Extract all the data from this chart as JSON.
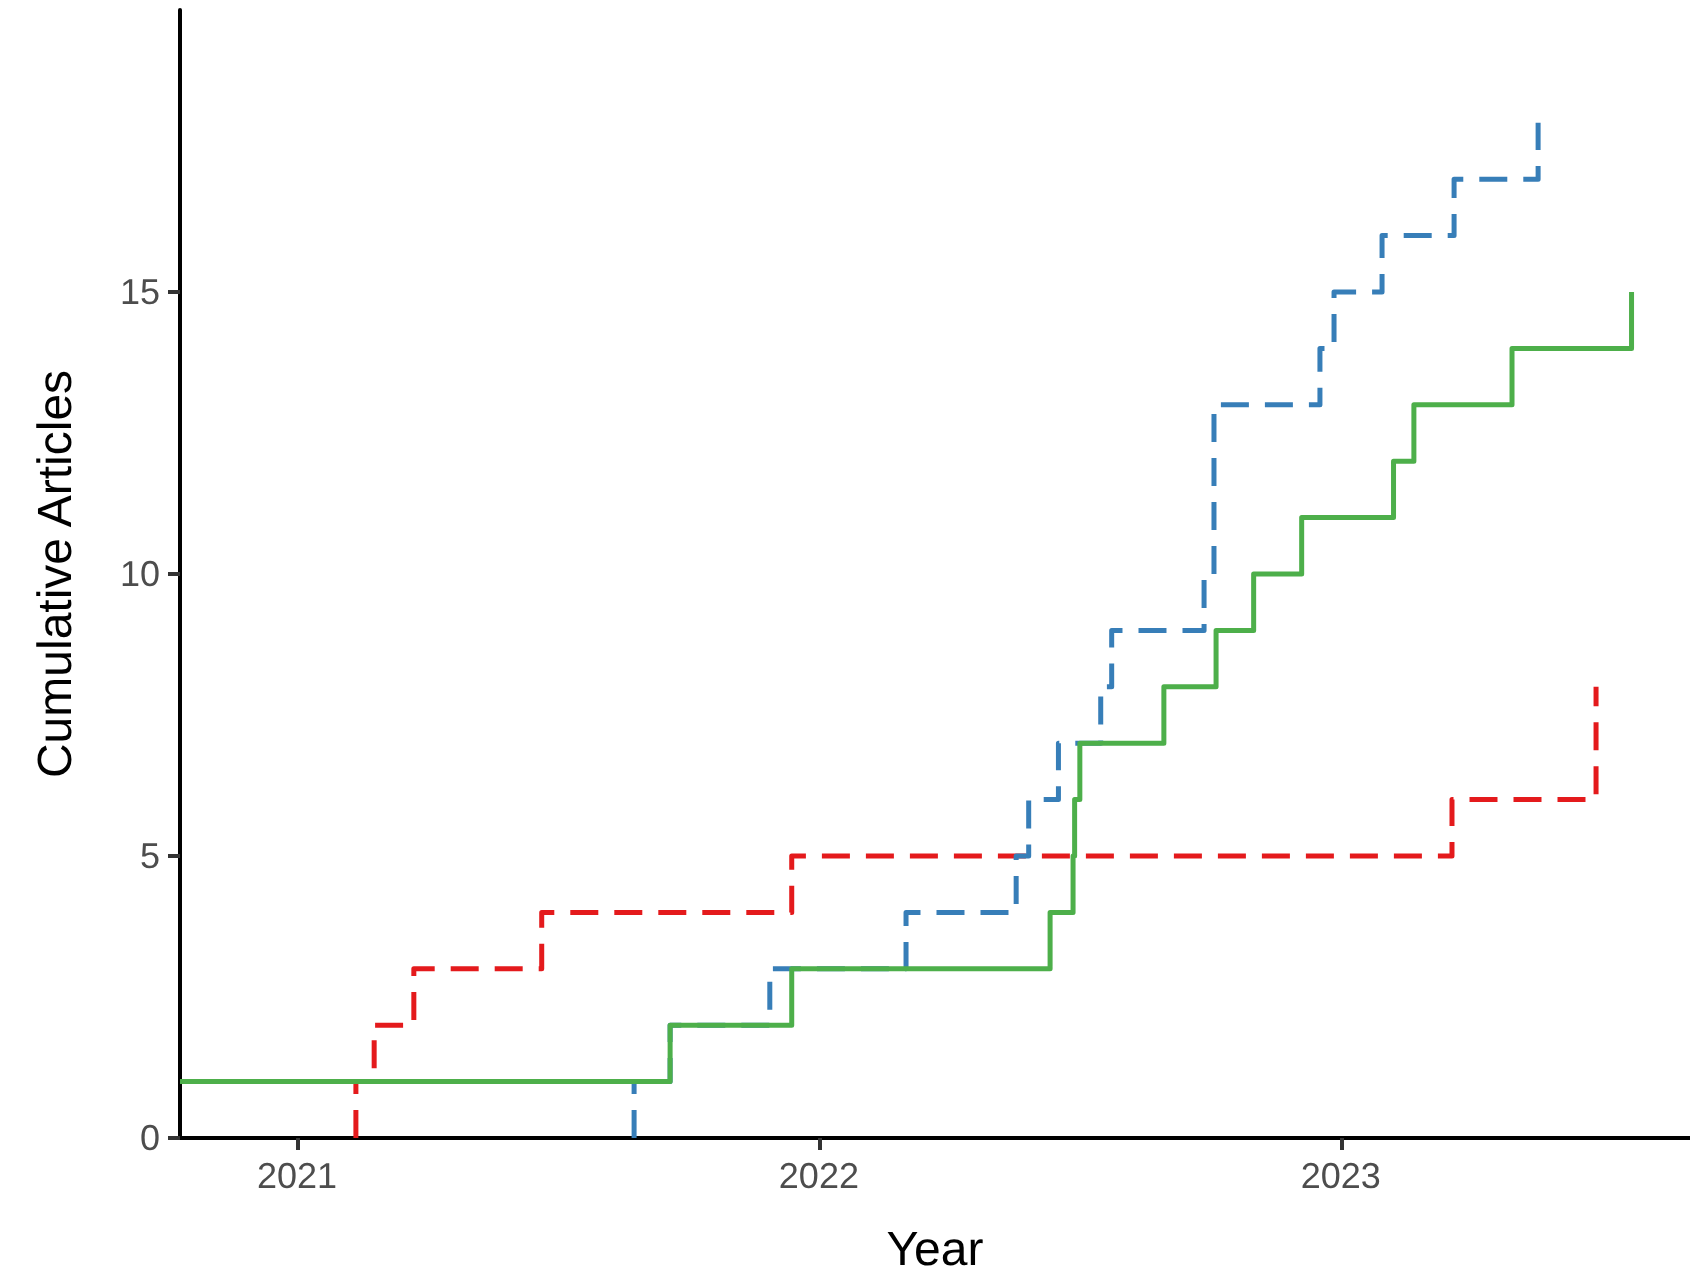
{
  "chart_data": {
    "type": "step",
    "xlabel": "Year",
    "ylabel": "Cumulative Articles",
    "xlim": [
      2020.776,
      2023.669
    ],
    "xticks": [
      2021,
      2022,
      2023
    ],
    "ylim": [
      0,
      20
    ],
    "yticks": [
      0,
      5,
      10,
      15
    ],
    "marker": "none",
    "series": [
      {
        "color": "#e41a1c",
        "line_style": "dashed",
        "x": [
          2021.113,
          2021.113,
          2021.148,
          2021.224,
          2021.469,
          2021.948,
          2023.213,
          2023.489
        ],
        "values": [
          0,
          1,
          2,
          3,
          4,
          5,
          6,
          8
        ]
      },
      {
        "color": "#377eb8",
        "line_style": "dashed",
        "x": [
          2021.646,
          2021.646,
          2021.715,
          2021.906,
          2022.167,
          2022.378,
          2022.402,
          2022.459,
          2022.54,
          2022.561,
          2022.738,
          2022.757,
          2022.96,
          2022.987,
          2023.079,
          2023.217,
          2023.378
        ],
        "values": [
          0,
          1,
          2,
          3,
          4,
          5,
          6,
          7,
          8,
          9,
          10,
          13,
          14,
          15,
          16,
          17,
          18
        ]
      },
      {
        "color": "#4daf4a",
        "line_style": "solid",
        "x": [
          2020.776,
          2021.715,
          2021.948,
          2022.443,
          2022.487,
          2022.49,
          2022.5,
          2022.661,
          2022.761,
          2022.833,
          2022.925,
          2023.101,
          2023.14,
          2023.328,
          2023.557
        ],
        "values": [
          1,
          2,
          3,
          4,
          5,
          6,
          7,
          8,
          9,
          10,
          11,
          12,
          13,
          14,
          15
        ]
      }
    ]
  }
}
